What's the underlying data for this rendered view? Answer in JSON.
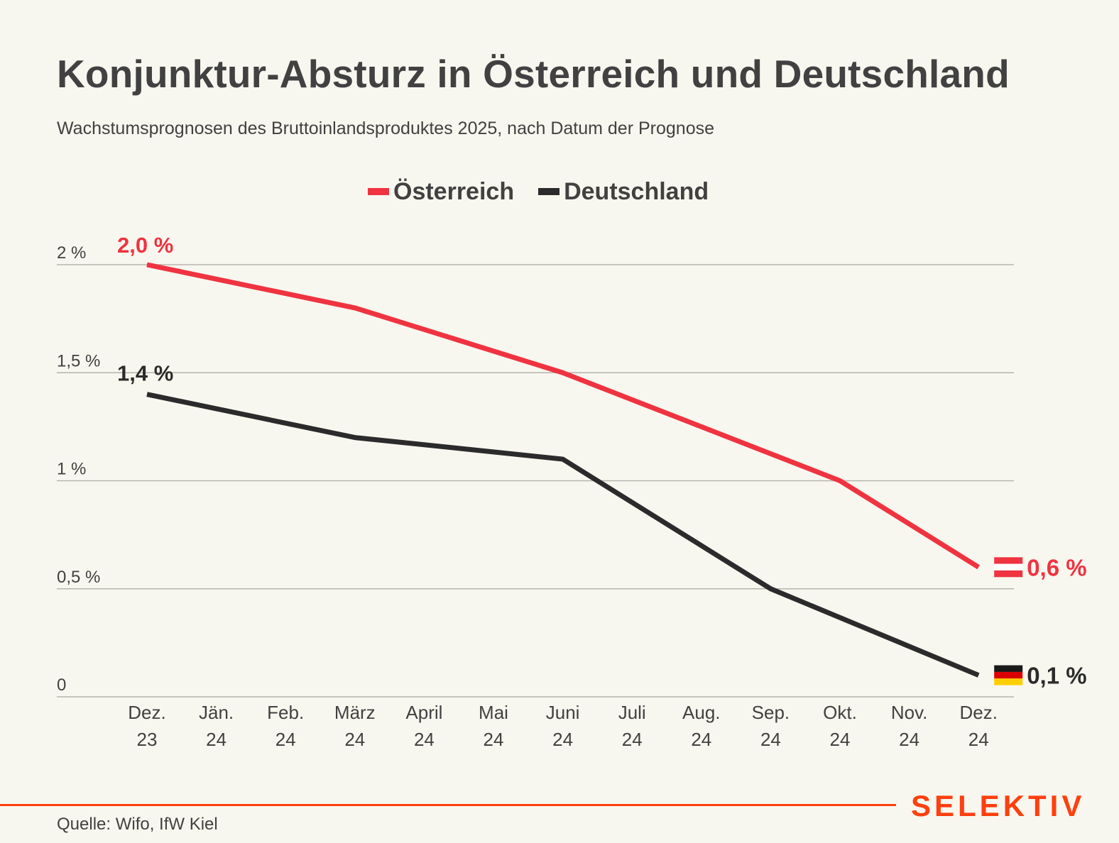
{
  "header": {
    "title": "Konjunktur-Absturz in Österreich und Deutschland",
    "subtitle": "Wachstumsprognosen des Bruttoinlandsproduktes 2025, nach Datum der Prognose"
  },
  "colors": {
    "austria": "#ef3340",
    "germany": "#2b2b2b",
    "gridline": "#b5b5ad",
    "axis_text": "#414141",
    "brand": "#ff3f0f",
    "background": "#f8f7ef"
  },
  "chart_data": {
    "type": "line",
    "title": "Konjunktur-Absturz in Österreich und Deutschland",
    "subtitle": "Wachstumsprognosen des Bruttoinlandsproduktes 2025, nach Datum der Prognose",
    "xlabel": "",
    "ylabel": "",
    "categories": [
      [
        "Dez.",
        "23"
      ],
      [
        "Jän.",
        "24"
      ],
      [
        "Feb.",
        "24"
      ],
      [
        "März",
        "24"
      ],
      [
        "April",
        "24"
      ],
      [
        "Mai",
        "24"
      ],
      [
        "Juni",
        "24"
      ],
      [
        "Juli",
        "24"
      ],
      [
        "Aug.",
        "24"
      ],
      [
        "Sep.",
        "24"
      ],
      [
        "Okt.",
        "24"
      ],
      [
        "Nov.",
        "24"
      ],
      [
        "Dez.",
        "24"
      ]
    ],
    "ylim": [
      0,
      2
    ],
    "yticks": [
      {
        "value": 0,
        "label": "0"
      },
      {
        "value": 0.5,
        "label": "0,5 %"
      },
      {
        "value": 1,
        "label": "1 %"
      },
      {
        "value": 1.5,
        "label": "1,5 %"
      },
      {
        "value": 2,
        "label": "2 %"
      }
    ],
    "grid": true,
    "legend_position": "top-center",
    "series": [
      {
        "name": "Österreich",
        "color_key": "austria",
        "points": [
          {
            "x": 0,
            "y": 2.0
          },
          {
            "x": 3,
            "y": 1.8
          },
          {
            "x": 6,
            "y": 1.5
          },
          {
            "x": 10,
            "y": 1.0
          },
          {
            "x": 12,
            "y": 0.6
          }
        ],
        "start_label": "2,0 %",
        "end_label": "0,6 %",
        "end_icon": "austria-flag"
      },
      {
        "name": "Deutschland",
        "color_key": "germany",
        "points": [
          {
            "x": 0,
            "y": 1.4
          },
          {
            "x": 3,
            "y": 1.2
          },
          {
            "x": 6,
            "y": 1.1
          },
          {
            "x": 9,
            "y": 0.5
          },
          {
            "x": 12,
            "y": 0.1
          }
        ],
        "start_label": "1,4 %",
        "end_label": "0,1 %",
        "end_icon": "germany-flag"
      }
    ]
  },
  "footer": {
    "source": "Quelle: Wifo, IfW Kiel",
    "brand": "SELEKTIV"
  }
}
